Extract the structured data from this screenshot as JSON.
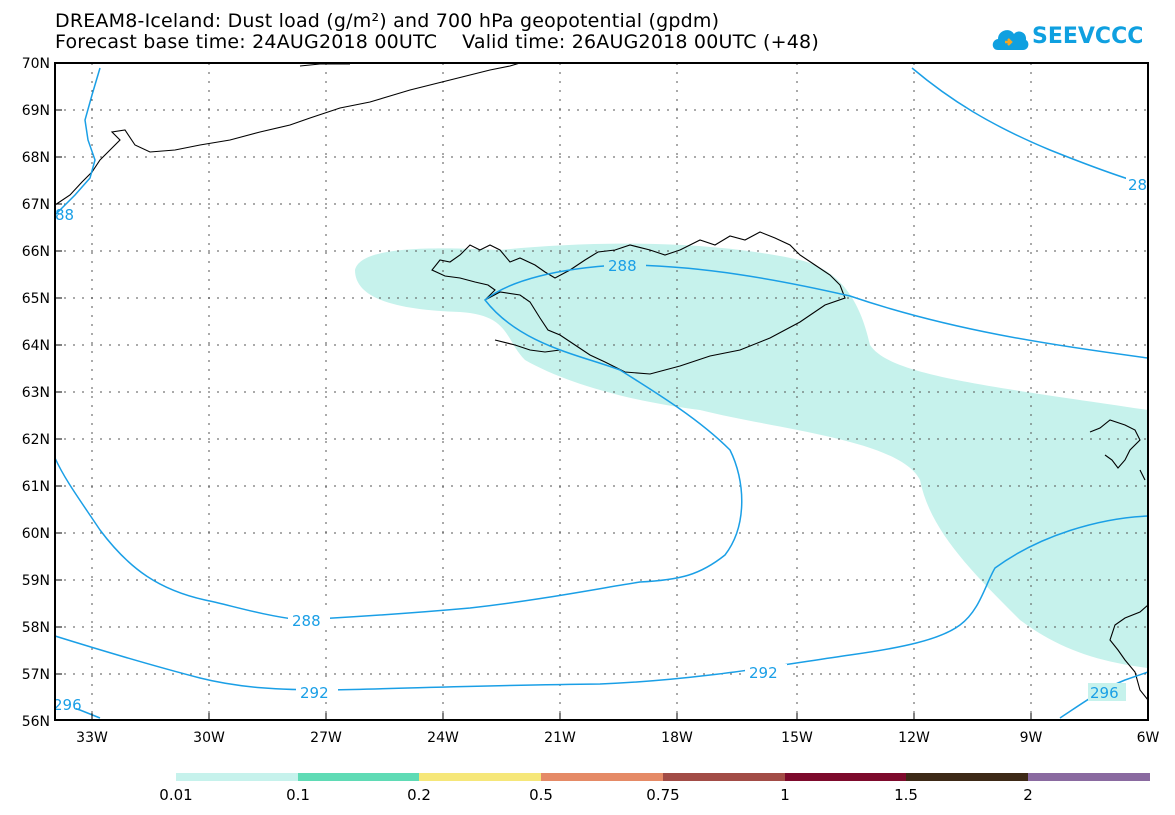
{
  "title_line1": "DREAM8-Iceland: Dust load (g/m²) and 700 hPa geopotential (gpdm)",
  "title_line2": "Forecast base time: 24AUG2018 00UTC    Valid time: 26AUG2018 00UTC (+48)",
  "logo": {
    "text": "SEEVCCC",
    "icon": "cloud-logo-icon",
    "color": "#0fa0e0"
  },
  "map": {
    "projection": "lat-lon",
    "lon_range": [
      -34.5,
      -6
    ],
    "lat_range": [
      56,
      70
    ],
    "lat_labels": [
      "56N",
      "57N",
      "58N",
      "59N",
      "60N",
      "61N",
      "62N",
      "63N",
      "64N",
      "65N",
      "66N",
      "67N",
      "68N",
      "69N",
      "70N"
    ],
    "lon_labels": [
      "33W",
      "30W",
      "27W",
      "24W",
      "21W",
      "18W",
      "15W",
      "12W",
      "9W",
      "6W"
    ],
    "dust_region_color": "#c6f2ec",
    "contour_color": "#1a9fe6",
    "contour_labels": [
      "288",
      "288",
      "292",
      "296",
      "88",
      "28"
    ]
  },
  "colorbar": {
    "colors": [
      "#c6f2ec",
      "#5fdbb5",
      "#f6e779",
      "#e58a66",
      "#a24c46",
      "#7d0a2c",
      "#3d2916",
      "#8a6aa0"
    ],
    "labels": [
      "0.01",
      "0.1",
      "0.2",
      "0.5",
      "0.75",
      "1",
      "1.5",
      "2"
    ]
  }
}
